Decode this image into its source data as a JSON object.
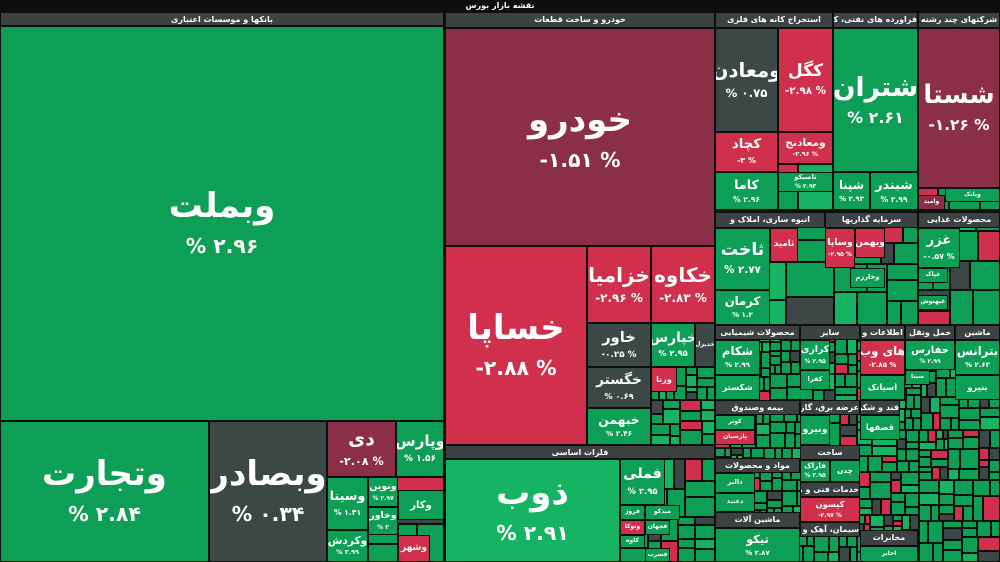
{
  "title": "نقشه بازار بورس",
  "sectors": [
    {
      "name": "بانکها و موسسات اعتباری",
      "tiles": [
        {
          "name": "وبملت",
          "change": "% ۲.۹۶"
        },
        {
          "name": "وتجارت",
          "change": "% ۲.۸۴"
        },
        {
          "name": "وبصادر",
          "change": "% ۰.۳۴"
        },
        {
          "name": "دی",
          "change": "-۲.۰۸ %"
        },
        {
          "name": "وپارس",
          "change": "% ۱.۵۶"
        },
        {
          "name": "وسینا",
          "change": "% ۱.۳۱"
        },
        {
          "name": "وکردش",
          "change": "% ۲.۹۹"
        },
        {
          "name": "ونوین",
          "change": "% ۲.۹۷"
        },
        {
          "name": "وخاور",
          "change": "% ۳"
        },
        {
          "name": "وکار"
        },
        {
          "name": "وشهر"
        }
      ]
    },
    {
      "name": "خودرو و ساخت قطعات",
      "tiles": [
        {
          "name": "خودرو",
          "change": "-۱.۵۱ %"
        },
        {
          "name": "خساپا",
          "change": "-۲.۸۸ %"
        },
        {
          "name": "خزامیا",
          "change": "-۲.۹۶ %"
        },
        {
          "name": "خکاوه",
          "change": "-۲.۸۳ %"
        },
        {
          "name": "خاور",
          "change": "-۰.۲۵ %"
        },
        {
          "name": "خپارس",
          "change": "% ۲.۹۵"
        },
        {
          "name": "خدیزل"
        },
        {
          "name": "خگستر",
          "change": "% ۰.۶۹"
        },
        {
          "name": "خبهمن",
          "change": "% ۲.۴۶"
        },
        {
          "name": "ورنا"
        }
      ]
    },
    {
      "name": "فلزات اساسی",
      "tiles": [
        {
          "name": "ذوب",
          "change": "% ۲.۹۱"
        },
        {
          "name": "فملی",
          "change": "% ۲.۹۵"
        },
        {
          "name": "فروژ"
        },
        {
          "name": "میدکو"
        },
        {
          "name": "وتوکا"
        },
        {
          "name": "فجهان"
        },
        {
          "name": "کاوه"
        },
        {
          "name": "فسرب"
        }
      ]
    },
    {
      "name": "استخراج کانه های فلزی",
      "tiles": [
        {
          "name": "ومعادن",
          "change": "% ۰.۷۵"
        },
        {
          "name": "کگل",
          "change": "-۲.۹۸ %"
        },
        {
          "name": "کچاد",
          "change": "-۳ %"
        },
        {
          "name": "ومعادنج",
          "change": "-۲.۹۶ %"
        },
        {
          "name": "کاما",
          "change": "% ۲.۹۶"
        },
        {
          "name": "تاصیکو",
          "change": "% ۲.۹۳"
        }
      ]
    },
    {
      "name": "فراورده های نفتی، کک",
      "tiles": [
        {
          "name": "شتران",
          "change": "% ۲.۶۱"
        },
        {
          "name": "شپنا",
          "change": "% ۲.۹۳"
        },
        {
          "name": "شبندر",
          "change": "% ۲.۹۹"
        }
      ]
    },
    {
      "name": "شرکتهای چند رشته",
      "tiles": [
        {
          "name": "شستا",
          "change": "-۱.۲۶ %"
        },
        {
          "name": "وبانک"
        },
        {
          "name": "وامید"
        }
      ]
    },
    {
      "name": "انبوه سازی، املاک و",
      "tiles": [
        {
          "name": "ثاخت",
          "change": "% ۲.۷۷"
        },
        {
          "name": "ثامید"
        },
        {
          "name": "کرمان",
          "change": "% ۱.۳"
        }
      ]
    },
    {
      "name": "سرمایه گذاریها",
      "tiles": [
        {
          "name": "وساپا",
          "change": "-۲.۹۵ %"
        },
        {
          "name": "وبهمن"
        },
        {
          "name": "وخارزم"
        }
      ]
    },
    {
      "name": "محصولات غذایی",
      "tiles": [
        {
          "name": "غزر",
          "change": "-۰.۵۷ %"
        },
        {
          "name": "غپاک"
        },
        {
          "name": "غبهنوش"
        }
      ]
    },
    {
      "name": "محصولات شیمیایی",
      "tiles": [
        {
          "name": "شکام",
          "change": "% ۲.۹۹"
        },
        {
          "name": "شکستر"
        }
      ]
    },
    {
      "name": "سایر",
      "tiles": [
        {
          "name": "کرازی",
          "change": "% ۲.۹۵"
        },
        {
          "name": "کفرا"
        }
      ]
    },
    {
      "name": "اطلاعات و",
      "tiles": [
        {
          "name": "های وب",
          "change": "-۲.۸۵ %"
        },
        {
          "name": "اسیاتک"
        }
      ]
    },
    {
      "name": "حمل ونقل",
      "tiles": [
        {
          "name": "حفارس",
          "change": "% ۲.۹۹"
        },
        {
          "name": "سینا"
        }
      ]
    },
    {
      "name": "ماشین",
      "tiles": [
        {
          "name": "بترانس",
          "change": "% ۲.۶۳"
        },
        {
          "name": "بنیرو"
        }
      ]
    },
    {
      "name": "بیمه وصندوق",
      "tiles": [
        {
          "name": "کوثر"
        },
        {
          "name": "پارسیان"
        }
      ]
    },
    {
      "name": "عرضه برق، گاز",
      "tiles": [
        {
          "name": "ونیرو"
        }
      ]
    },
    {
      "name": "قند و شکر",
      "tiles": [
        {
          "name": "قصفها"
        }
      ]
    },
    {
      "name": "ساخت",
      "tiles": [
        {
          "name": "فاراک",
          "change": "% ۲.۹۵"
        },
        {
          "name": "چدن"
        }
      ]
    },
    {
      "name": "مواد و محصولات",
      "tiles": [
        {
          "name": "دالبر"
        },
        {
          "name": "دعبید"
        }
      ]
    },
    {
      "name": "خدمات فنی و مهندسی",
      "tiles": [
        {
          "name": "کیسون",
          "change": "-۲.۹۷ %"
        }
      ]
    },
    {
      "name": "ماشین آلات",
      "tiles": [
        {
          "name": "تیکو",
          "change": "% ۲.۸۷"
        }
      ]
    },
    {
      "name": "سیمان، آهک و گچ",
      "tiles": []
    },
    {
      "name": "مخابرات",
      "tiles": [
        {
          "name": "اخابر"
        }
      ]
    }
  ]
}
